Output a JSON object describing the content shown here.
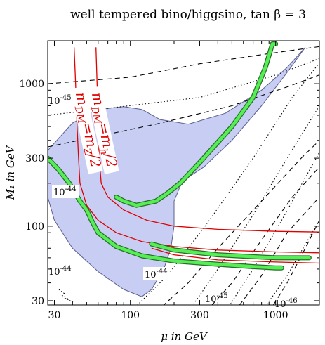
{
  "chart_data": {
    "type": "contour",
    "title": "well tempered bino/higgsino, tan β = 3",
    "xlabel": "μ in GeV",
    "ylabel": "M₁ in GeV",
    "x_scale": "log",
    "y_scale": "log",
    "xlim": [
      27,
      2000
    ],
    "ylim": [
      28,
      2000
    ],
    "x_ticks": [
      30,
      100,
      300,
      1000
    ],
    "x_tick_labels": [
      "30",
      "100",
      "300",
      "1000"
    ],
    "y_ticks": [
      30,
      100,
      300,
      1000
    ],
    "y_tick_labels": [
      "30",
      "100",
      "300",
      "1000"
    ],
    "annotations": {
      "dm_h": "m_DM = m_h/2",
      "dm_z": "m_DM = m_Z/2",
      "labels": [
        "10^-45",
        "10^-44",
        "10^-44",
        "10^-44",
        "10^-45",
        "10^-46"
      ]
    },
    "red_lines": [
      {
        "label": "m_DM = m_h/2",
        "points": [
          [
            41,
            1800
          ],
          [
            42,
            1000
          ],
          [
            43,
            500
          ],
          [
            44,
            300
          ],
          [
            45,
            200
          ],
          [
            50,
            140
          ],
          [
            60,
            110
          ],
          [
            80,
            90
          ],
          [
            120,
            78
          ],
          [
            200,
            72
          ],
          [
            400,
            68
          ],
          [
            1000,
            66
          ],
          [
            2000,
            65
          ]
        ]
      },
      {
        "label": "m_DM = m_Z/2",
        "points": [
          [
            58,
            1800
          ],
          [
            59,
            1000
          ],
          [
            60,
            500
          ],
          [
            61,
            300
          ],
          [
            63,
            200
          ],
          [
            70,
            160
          ],
          [
            90,
            130
          ],
          [
            130,
            110
          ],
          [
            200,
            100
          ],
          [
            400,
            95
          ],
          [
            1000,
            92
          ],
          [
            2000,
            91
          ]
        ]
      },
      {
        "label": "",
        "points": [
          [
            140,
            70
          ],
          [
            200,
            63
          ],
          [
            400,
            58
          ],
          [
            1000,
            56
          ],
          [
            2000,
            55
          ]
        ]
      }
    ],
    "green_band": [
      [
        [
          27,
          300
        ],
        [
          32,
          250
        ],
        [
          38,
          200
        ],
        [
          45,
          150
        ],
        [
          50,
          130
        ],
        [
          52,
          120
        ],
        [
          54,
          110
        ],
        [
          60,
          90
        ],
        [
          80,
          72
        ],
        [
          120,
          62
        ],
        [
          200,
          57
        ],
        [
          400,
          54
        ],
        [
          700,
          52
        ],
        [
          1000,
          51
        ],
        [
          1100,
          51
        ]
      ],
      [
        [
          80,
          160
        ],
        [
          90,
          150
        ],
        [
          110,
          140
        ],
        [
          150,
          150
        ],
        [
          180,
          170
        ],
        [
          220,
          200
        ],
        [
          300,
          280
        ],
        [
          500,
          500
        ],
        [
          700,
          800
        ],
        [
          850,
          1300
        ],
        [
          950,
          1900
        ],
        [
          1000,
          1900
        ]
      ],
      [
        [
          140,
          75
        ],
        [
          200,
          68
        ],
        [
          400,
          63
        ],
        [
          1000,
          60
        ],
        [
          1700,
          60
        ]
      ]
    ],
    "blue_region": [
      [
        27,
        340
      ],
      [
        40,
        530
      ],
      [
        60,
        660
      ],
      [
        90,
        690
      ],
      [
        120,
        660
      ],
      [
        160,
        560
      ],
      [
        250,
        520
      ],
      [
        450,
        620
      ],
      [
        800,
        900
      ],
      [
        1200,
        1300
      ],
      [
        1600,
        1800
      ],
      [
        1200,
        1200
      ],
      [
        800,
        700
      ],
      [
        500,
        400
      ],
      [
        320,
        260
      ],
      [
        250,
        220
      ],
      [
        220,
        190
      ],
      [
        200,
        150
      ],
      [
        200,
        100
      ],
      [
        190,
        70
      ],
      [
        170,
        50
      ],
      [
        140,
        36
      ],
      [
        120,
        32
      ],
      [
        90,
        36
      ],
      [
        60,
        48
      ],
      [
        40,
        70
      ],
      [
        30,
        110
      ],
      [
        27,
        160
      ]
    ],
    "dashed_contours": [
      [
        [
          27,
          1000
        ],
        [
          100,
          1110
        ],
        [
          300,
          1380
        ],
        [
          1000,
          1650
        ],
        [
          2000,
          1820
        ]
      ],
      [
        [
          27,
          360
        ],
        [
          150,
          520
        ],
        [
          500,
          700
        ],
        [
          1200,
          950
        ],
        [
          2000,
          1150
        ]
      ],
      [
        [
          150,
          25
        ],
        [
          250,
          40
        ],
        [
          400,
          70
        ],
        [
          800,
          150
        ],
        [
          1500,
          300
        ],
        [
          2000,
          400
        ]
      ],
      [
        [
          330,
          25
        ],
        [
          500,
          40
        ],
        [
          800,
          80
        ],
        [
          1300,
          160
        ],
        [
          2000,
          260
        ]
      ],
      [
        [
          520,
          25
        ],
        [
          800,
          45
        ],
        [
          1200,
          90
        ],
        [
          2000,
          160
        ]
      ],
      [
        [
          900,
          25
        ],
        [
          1200,
          40
        ],
        [
          1600,
          70
        ],
        [
          2000,
          110
        ]
      ]
    ],
    "dotted_contours": [
      [
        [
          27,
          600
        ],
        [
          300,
          800
        ],
        [
          1000,
          1150
        ],
        [
          2000,
          1500
        ]
      ],
      [
        [
          100,
          25
        ],
        [
          180,
          45
        ],
        [
          350,
          110
        ],
        [
          700,
          300
        ],
        [
          1300,
          800
        ],
        [
          2000,
          1400
        ]
      ],
      [
        [
          250,
          25
        ],
        [
          400,
          50
        ],
        [
          700,
          120
        ],
        [
          1200,
          300
        ],
        [
          2000,
          700
        ]
      ],
      [
        [
          450,
          25
        ],
        [
          700,
          50
        ],
        [
          1100,
          110
        ],
        [
          2000,
          330
        ]
      ],
      [
        [
          800,
          25
        ],
        [
          1200,
          45
        ],
        [
          2000,
          110
        ]
      ]
    ]
  }
}
